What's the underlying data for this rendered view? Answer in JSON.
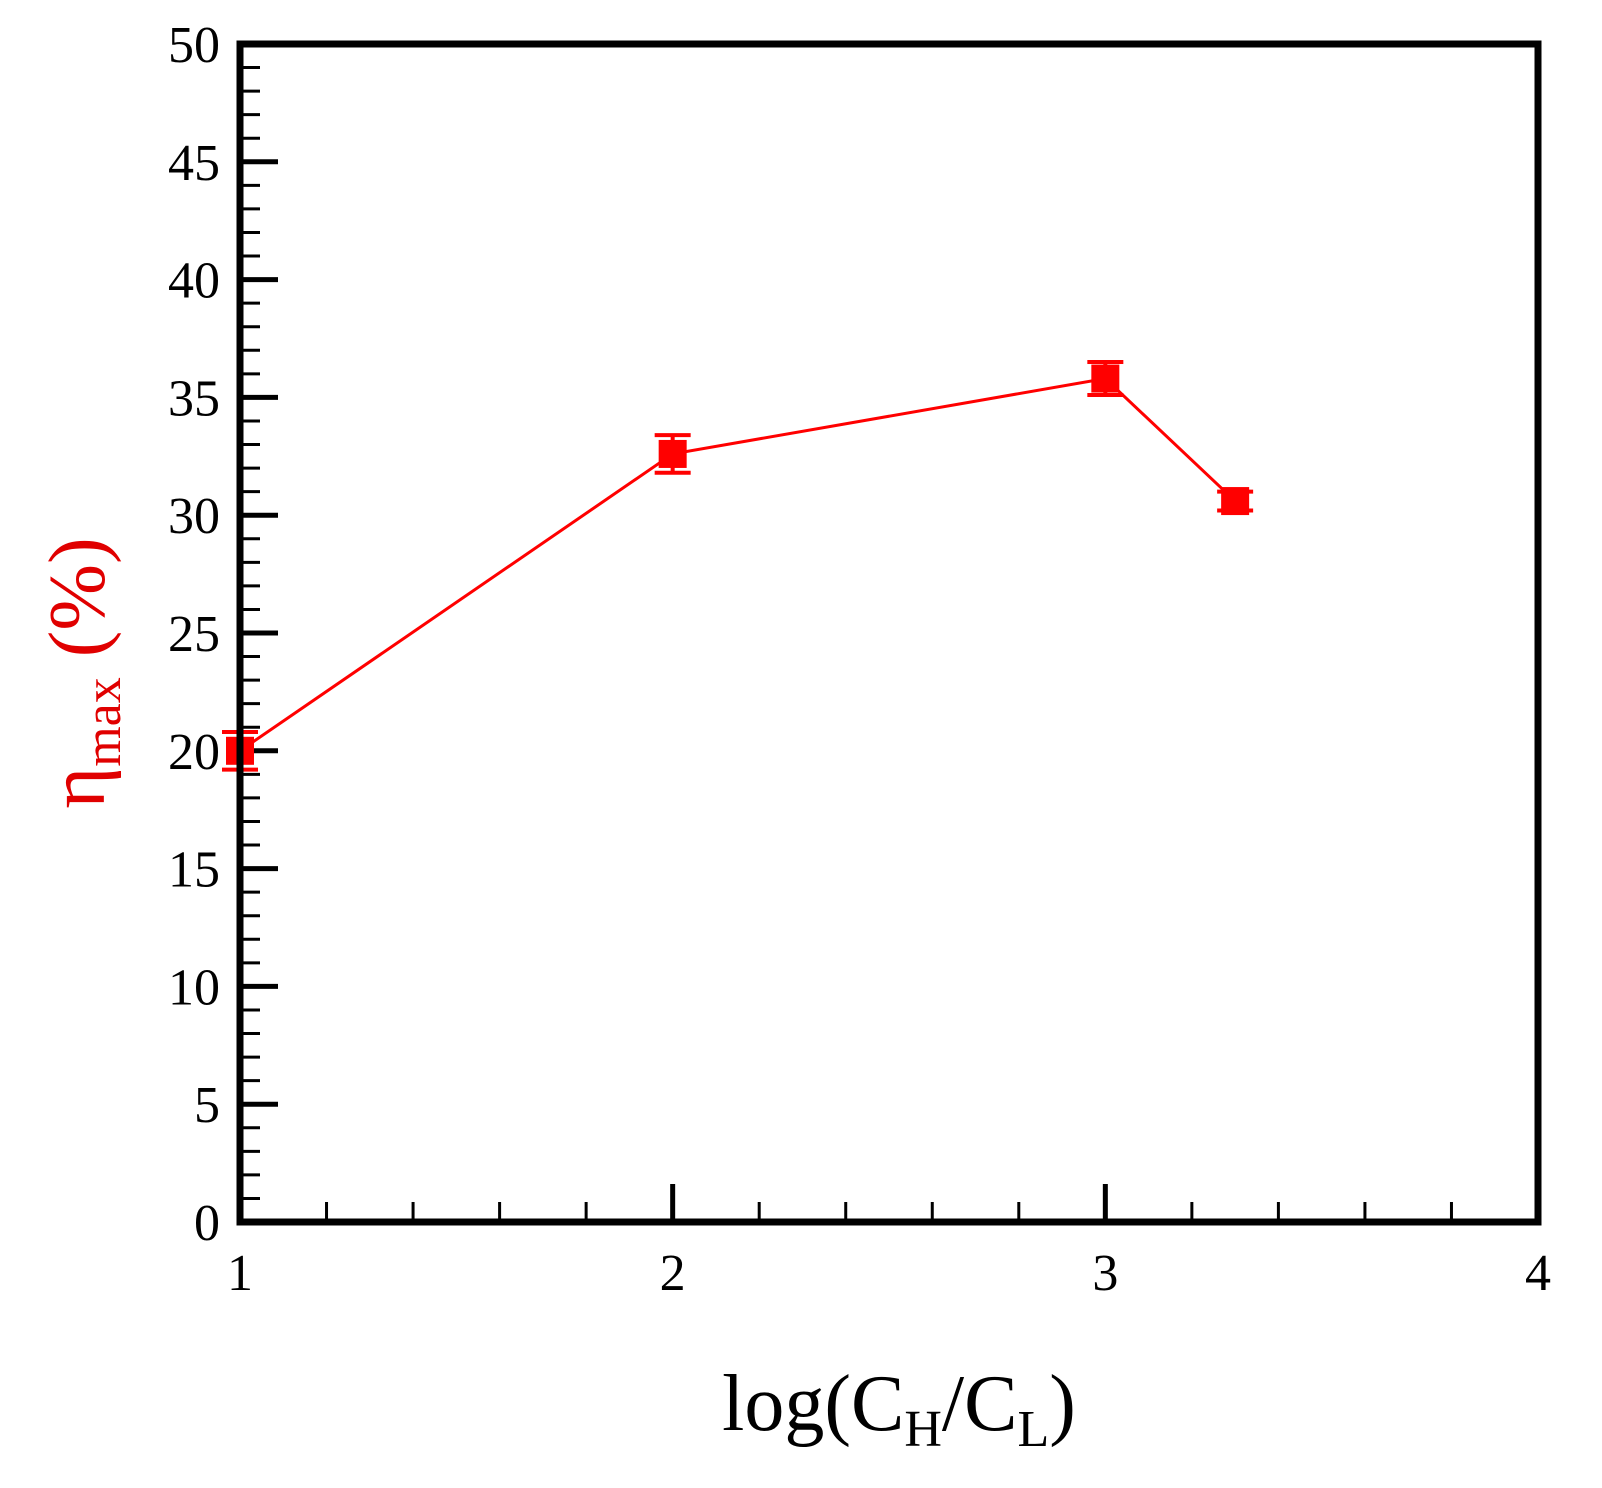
{
  "chart_data": {
    "type": "scatter",
    "title": "",
    "xlabel": {
      "prefix": "log(C",
      "sub1": "H",
      "mid": "/C",
      "sub2": "L",
      "suffix": ")"
    },
    "ylabel": {
      "main": "η",
      "sub": "max",
      "suffix": " (%)"
    },
    "xlim": [
      1,
      4
    ],
    "ylim": [
      0,
      50
    ],
    "x_ticks": [
      1,
      2,
      3,
      4
    ],
    "x_tick_labels": [
      "1",
      "2",
      "3",
      "4"
    ],
    "x_minor_step": 0.2,
    "y_ticks": [
      0,
      5,
      10,
      15,
      20,
      25,
      30,
      35,
      40,
      45,
      50
    ],
    "y_tick_labels": [
      "0",
      "5",
      "10",
      "15",
      "20",
      "25",
      "30",
      "35",
      "40",
      "45",
      "50"
    ],
    "y_minor_step": 1,
    "grid": false,
    "series": [
      {
        "color": "#ff0000",
        "marker": "square",
        "x": [
          1.0,
          2.0,
          3.0,
          3.3
        ],
        "y": [
          20.0,
          32.6,
          35.8,
          30.6
        ],
        "yerr": [
          0.8,
          0.8,
          0.7,
          0.4
        ],
        "connected_x": [
          1.0,
          2.0,
          3.0,
          3.3
        ]
      }
    ]
  }
}
